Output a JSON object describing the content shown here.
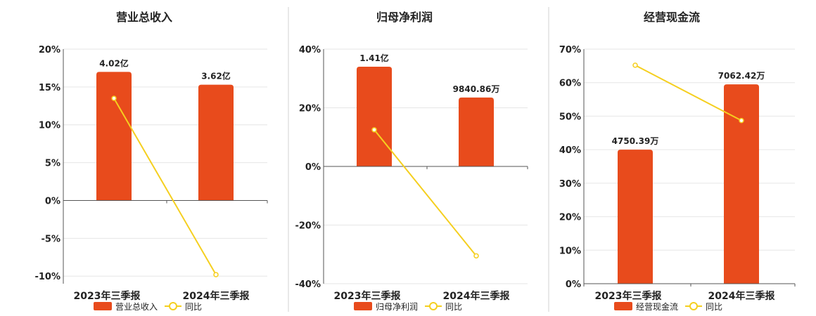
{
  "colors": {
    "bar": "#e84b1c",
    "line": "#f5cf1f",
    "axis": "#555555",
    "grid": "#e6e6e6",
    "divider": "#d0d0d0",
    "text": "#222222"
  },
  "chart_data": [
    {
      "type": "bar",
      "title": "营业总收入",
      "categories": [
        "2023年三季报",
        "2024年三季报"
      ],
      "bar_value_labels": [
        "4.02亿",
        "3.62亿"
      ],
      "bar_heights_pct": [
        17,
        15.3
      ],
      "yoy_pct": [
        13.5,
        -9.8
      ],
      "ylim": [
        -11,
        20
      ],
      "yticks": [
        20,
        15,
        10,
        5,
        0,
        -5,
        -10
      ],
      "ytick_labels": [
        "20%",
        "15%",
        "10%",
        "5%",
        "0%",
        "-5%",
        "-10%"
      ],
      "legend": {
        "bar": "营业总收入",
        "line": "同比"
      }
    },
    {
      "type": "bar",
      "title": "归母净利润",
      "categories": [
        "2023年三季报",
        "2024年三季报"
      ],
      "bar_value_labels": [
        "1.41亿",
        "9840.86万"
      ],
      "bar_heights_pct": [
        34,
        23.5
      ],
      "yoy_pct": [
        12.5,
        -30.5
      ],
      "ylim": [
        -40,
        40
      ],
      "yticks": [
        40,
        20,
        0,
        -20,
        -40
      ],
      "ytick_labels": [
        "40%",
        "20%",
        "0%",
        "-20%",
        "-40%"
      ],
      "legend": {
        "bar": "归母净利润",
        "line": "同比"
      }
    },
    {
      "type": "bar",
      "title": "经营现金流",
      "categories": [
        "2023年三季报",
        "2024年三季报"
      ],
      "bar_value_labels": [
        "4750.39万",
        "7062.42万"
      ],
      "bar_heights_pct": [
        40,
        59.5
      ],
      "yoy_pct": [
        65.2,
        48.7
      ],
      "ylim": [
        0,
        70
      ],
      "yticks": [
        70,
        60,
        50,
        40,
        30,
        20,
        10,
        0
      ],
      "ytick_labels": [
        "70%",
        "60%",
        "50%",
        "40%",
        "30%",
        "20%",
        "10%",
        "0%"
      ],
      "legend": {
        "bar": "经营现金流",
        "line": "同比"
      }
    }
  ]
}
